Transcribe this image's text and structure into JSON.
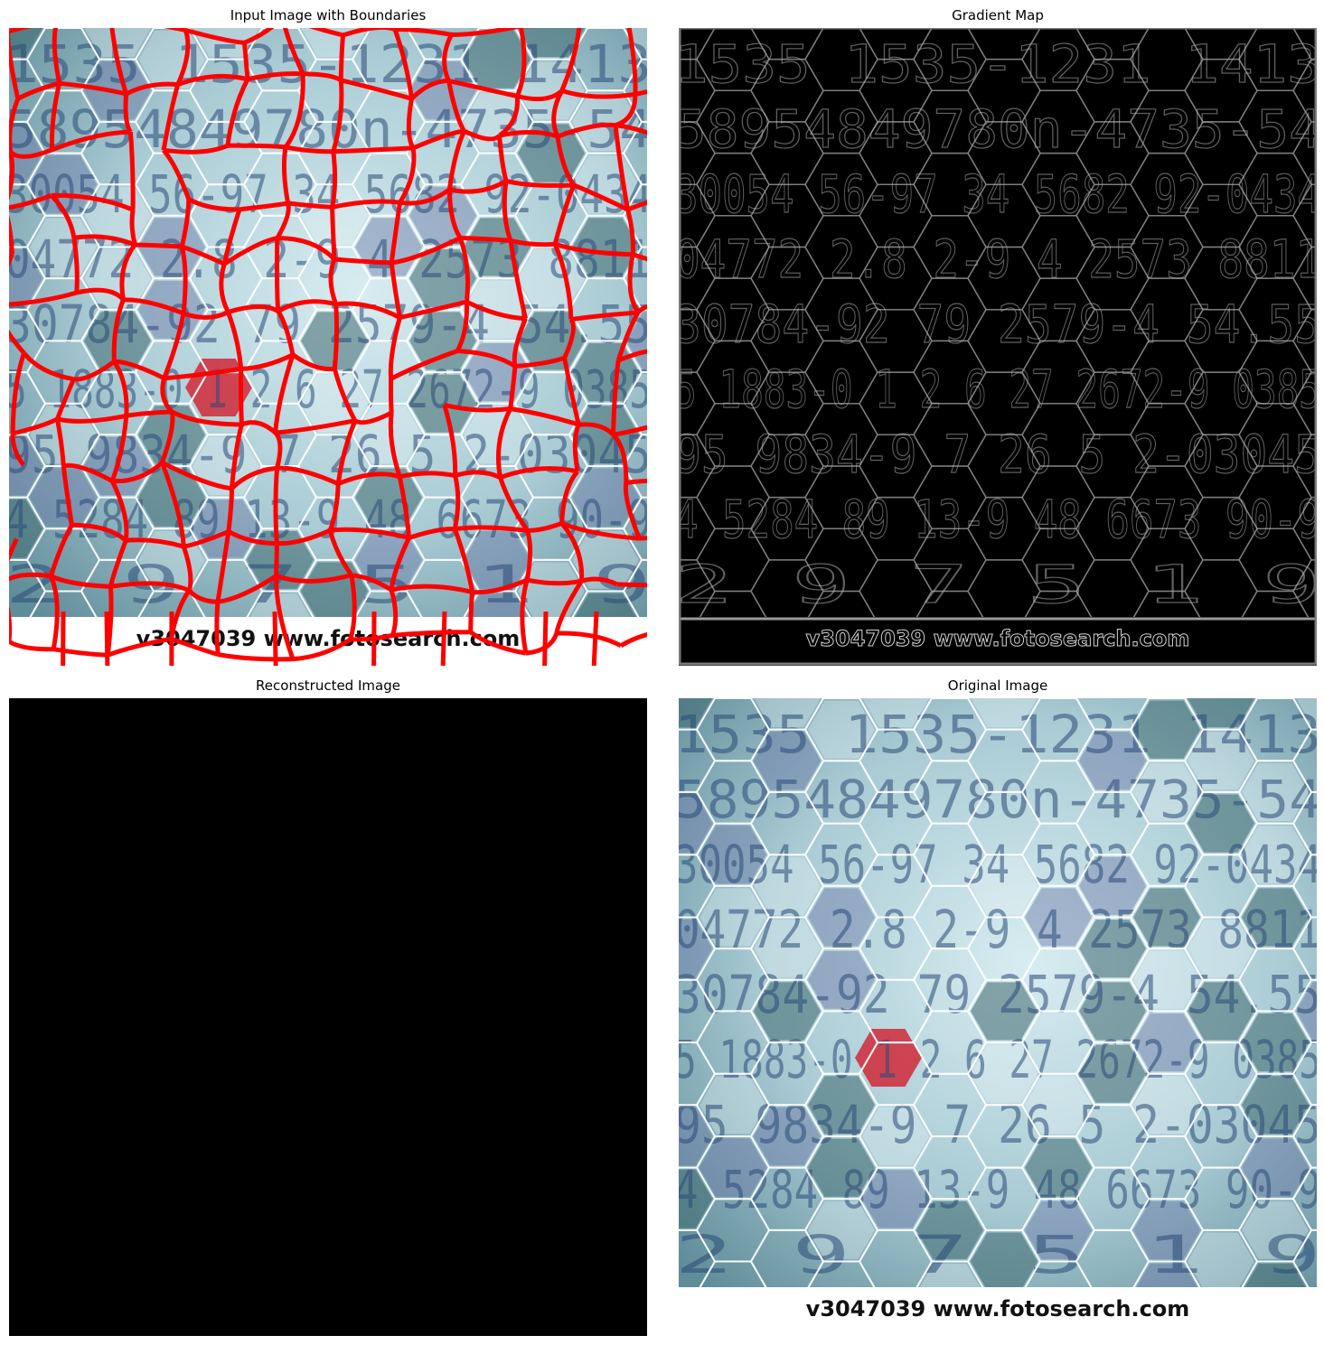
{
  "panels": {
    "top_left": {
      "title": "Input Image with Boundaries",
      "watermark": "v3047039  www.fotosearch.com"
    },
    "top_right": {
      "title": "Gradient Map",
      "watermark": "v3047039  www.fotosearch.com"
    },
    "bottom_left": {
      "title": "Reconstructed Image"
    },
    "bottom_right": {
      "title": "Original Image",
      "watermark": "v3047039  www.fotosearch.com"
    }
  },
  "digit_rows": [
    "1535 1535-1231 1413",
    "58954849780n-4735-54",
    "30054 56-97 34 5682 92-0434",
    "04772 2.8 2-9 4 2573 8811",
    "30784-92 79 2579-4 54.55",
    "5 1883-0 1 2 6 27 2672-9 0385",
    "95 9834-9 7 26 5 2-03045",
    "4 5284 89 13-9 48 6673 90-9",
    "2 9 7 5 1 9"
  ],
  "colors": {
    "boundary": "#ff0000",
    "background_light": "#d8edf1",
    "background_dark": "#5f8c99",
    "digit": "#2b4b78",
    "hex_line": "#ffffff",
    "gradient_bg": "#000000",
    "gradient_edge": "#8a8a8a",
    "reconstructed": "#000000"
  }
}
